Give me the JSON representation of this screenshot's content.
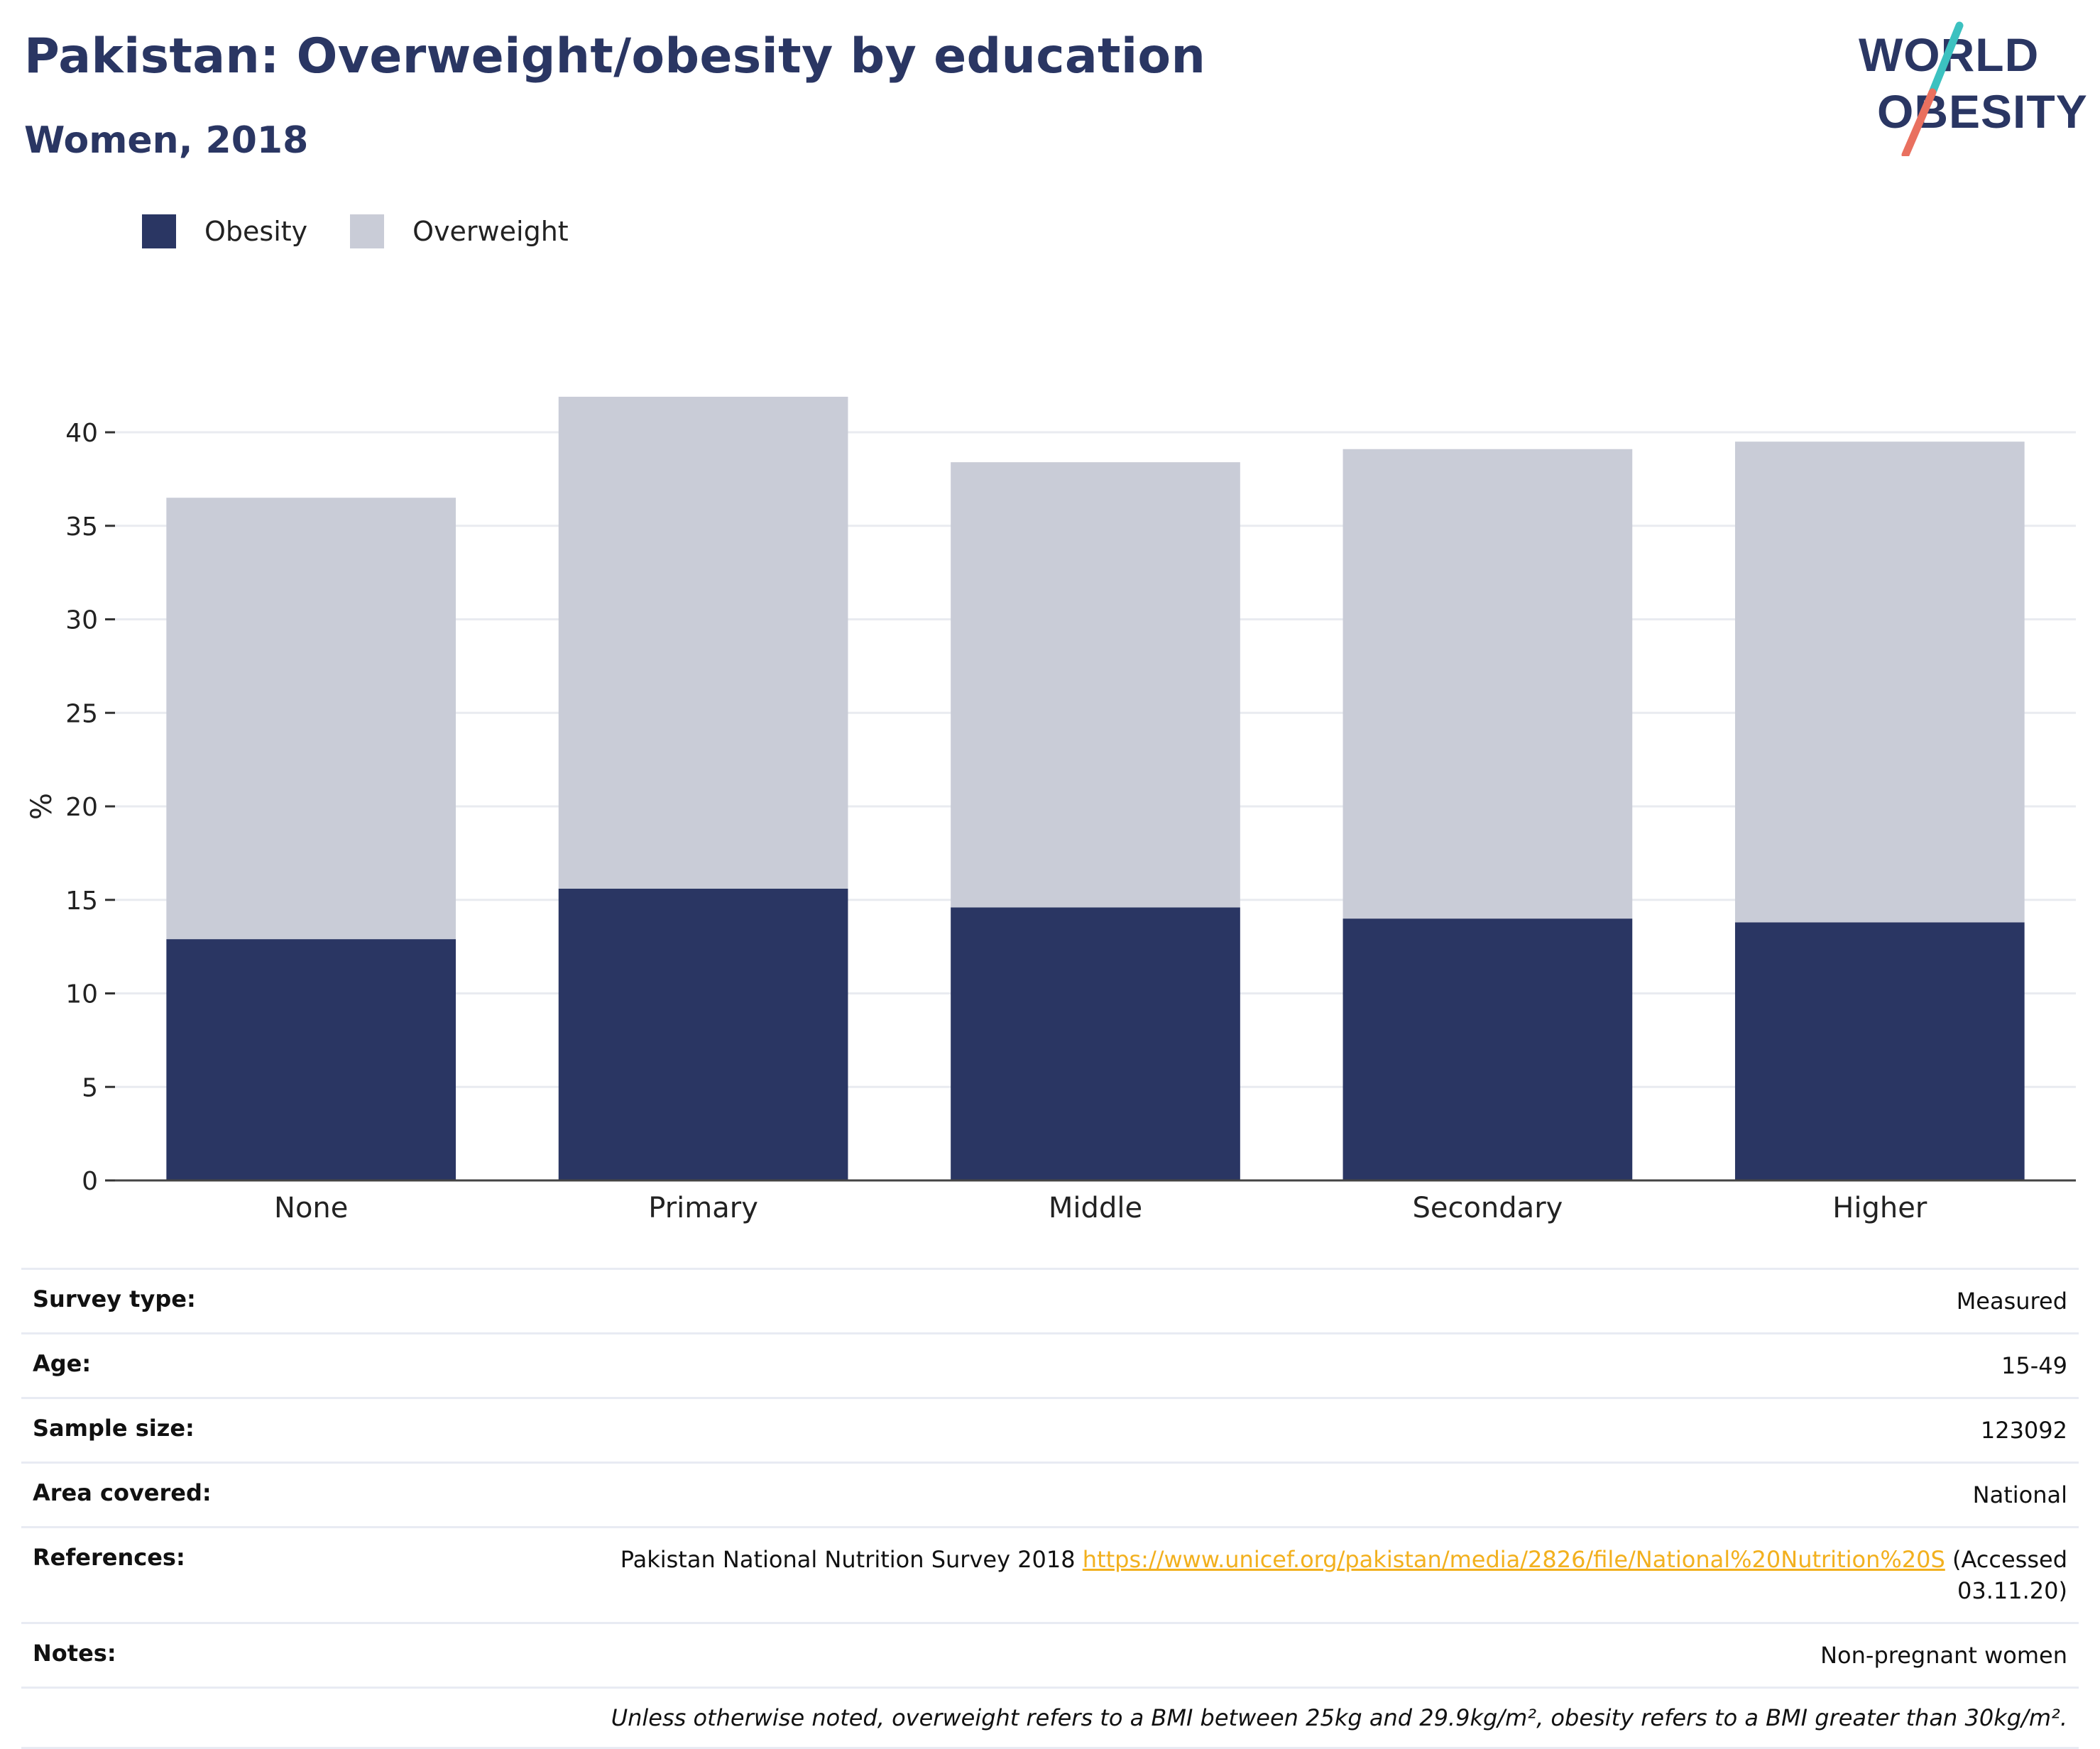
{
  "header": {
    "title": "Pakistan: Overweight/obesity by education",
    "subtitle": "Women, 2018"
  },
  "logo": {
    "line1": "WORLD",
    "line2": "OBESITY",
    "colors": {
      "text": "#2a3663",
      "slash_top": "#3cc1c0",
      "slash_bottom": "#e9705f"
    }
  },
  "legend": [
    {
      "label": "Obesity",
      "color": "#2a3663"
    },
    {
      "label": "Overweight",
      "color": "#c9ccd7"
    }
  ],
  "chart_data": {
    "type": "bar",
    "stacked": true,
    "categories": [
      "None",
      "Primary",
      "Middle",
      "Secondary",
      "Higher"
    ],
    "series": [
      {
        "name": "Obesity",
        "color": "#2a3663",
        "values": [
          12.9,
          15.6,
          14.6,
          14.0,
          13.8
        ]
      },
      {
        "name": "Overweight",
        "color": "#c9ccd7",
        "values": [
          23.6,
          26.3,
          23.8,
          25.1,
          25.7
        ]
      }
    ],
    "ylabel": "%",
    "ylim": [
      0,
      42
    ],
    "yticks": [
      0,
      5,
      10,
      15,
      20,
      25,
      30,
      35,
      40
    ],
    "grid": true,
    "legend_position": "top-left"
  },
  "info": {
    "survey_type": {
      "key": "Survey type:",
      "value": "Measured"
    },
    "age": {
      "key": "Age:",
      "value": "15-49"
    },
    "sample_size": {
      "key": "Sample size:",
      "value": "123092"
    },
    "area": {
      "key": "Area covered:",
      "value": "National"
    },
    "references": {
      "key": "References:",
      "text": "Pakistan National Nutrition Survey 2018",
      "link": "https://www.unicef.org/pakistan/media/2826/file/National%20Nutrition%20S",
      "accessed_line1": "(Accessed",
      "accessed_line2": "03.11.20)"
    },
    "notes": {
      "key": "Notes:",
      "value": "Non-pregnant women"
    },
    "footnote": "Unless otherwise noted, overweight refers to a BMI between 25kg and 29.9kg/m², obesity refers to a BMI greater than 30kg/m²."
  }
}
